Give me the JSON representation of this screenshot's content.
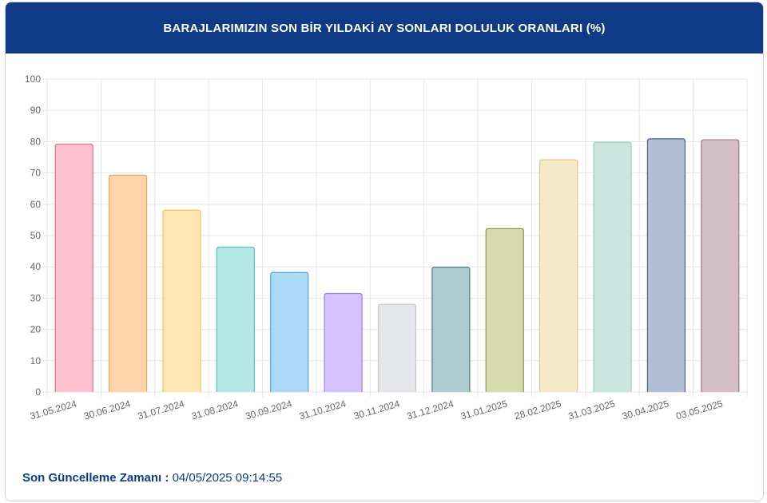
{
  "header": {
    "title": "BARAJLARIMIZIN SON BİR YILDAKİ AY SONLARI DOLULUK ORANLARI (%)"
  },
  "footer": {
    "label": "Son Güncelleme Zamanı :",
    "value": "04/05/2025 09:14:55"
  },
  "chart_data": {
    "type": "bar",
    "title": "BARAJLARIMIZIN SON BİR YILDAKİ AY SONLARI DOLULUK ORANLARI (%)",
    "xlabel": "",
    "ylabel": "",
    "ylim": [
      0,
      100
    ],
    "yticks": [
      0,
      10,
      20,
      30,
      40,
      50,
      60,
      70,
      80,
      90,
      100
    ],
    "grid": true,
    "legend": "none",
    "categories": [
      "31.05.2024",
      "30.06.2024",
      "31.07.2024",
      "31.08.2024",
      "30.09.2024",
      "31.10.2024",
      "30.11.2024",
      "31.12.2024",
      "31.01.2025",
      "28.02.2025",
      "31.03.2025",
      "30.04.2025",
      "03.05.2025"
    ],
    "values": [
      79.2,
      69.3,
      58.1,
      46.3,
      38.2,
      31.5,
      28.0,
      39.9,
      52.2,
      74.2,
      79.8,
      80.9,
      80.6
    ],
    "colors": [
      {
        "fill": "#ffc0d0",
        "stroke": "#e07088"
      },
      {
        "fill": "#ffd4ab",
        "stroke": "#f0a25e"
      },
      {
        "fill": "#ffe7b3",
        "stroke": "#f0c25a"
      },
      {
        "fill": "#b4e8e4",
        "stroke": "#5cc0b8"
      },
      {
        "fill": "#acdaf6",
        "stroke": "#4ea8e2"
      },
      {
        "fill": "#d5c3fe",
        "stroke": "#9b7ef2"
      },
      {
        "fill": "#e5e6e9",
        "stroke": "#c4c6cb"
      },
      {
        "fill": "#adcbcf",
        "stroke": "#4f7f87"
      },
      {
        "fill": "#d5dbad",
        "stroke": "#8a9550"
      },
      {
        "fill": "#f5e9c7",
        "stroke": "#e3c98a"
      },
      {
        "fill": "#cbe6de",
        "stroke": "#9ccdbf"
      },
      {
        "fill": "#b0bfd3",
        "stroke": "#4a6283"
      },
      {
        "fill": "#d4bfc7",
        "stroke": "#a07786"
      }
    ]
  }
}
